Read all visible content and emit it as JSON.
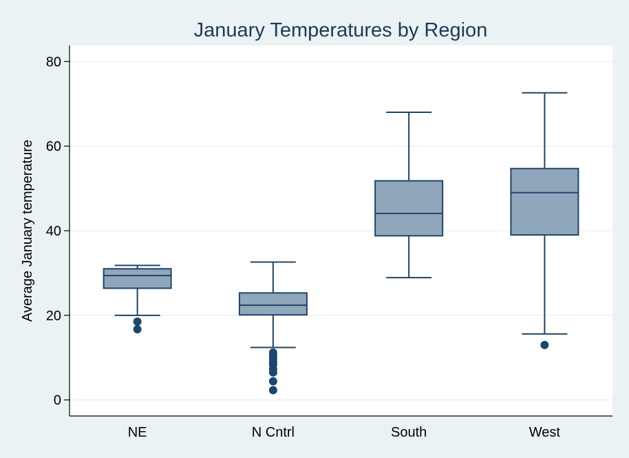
{
  "chart_data": {
    "type": "box",
    "title": "January Temperatures by Region",
    "xlabel": "",
    "ylabel": "Average January temperature",
    "ylim": [
      -3.8,
      83.8
    ],
    "yticks": [
      0,
      20,
      40,
      60,
      80
    ],
    "grid": true,
    "categories": [
      "NE",
      "N Cntrl",
      "South",
      "West"
    ],
    "boxes": [
      {
        "category": "NE",
        "whisker_low": 20.0,
        "q1": 26.4,
        "median": 29.4,
        "q3": 31.0,
        "whisker_high": 31.8,
        "outliers": [
          18.5,
          16.7
        ]
      },
      {
        "category": "N Cntrl",
        "whisker_low": 12.4,
        "q1": 20.1,
        "median": 22.4,
        "q3": 25.3,
        "whisker_high": 32.6,
        "outliers": [
          11.2,
          10.5,
          9.7,
          9.0,
          8.3,
          7.3,
          6.5,
          4.4,
          2.3
        ]
      },
      {
        "category": "South",
        "whisker_low": 28.9,
        "q1": 38.8,
        "median": 44.1,
        "q3": 51.8,
        "whisker_high": 68.0,
        "outliers": []
      },
      {
        "category": "West",
        "whisker_low": 15.6,
        "q1": 39.0,
        "median": 49.0,
        "q3": 54.7,
        "whisker_high": 72.6,
        "outliers": [
          13.0
        ]
      }
    ],
    "colors": {
      "background": "#eaf2f3",
      "plot_background": "#ffffff",
      "box_fill": "#90a6bb",
      "box_stroke": "#1f4468",
      "outlier": "#1a476f",
      "grid": "#eaf2f3",
      "axis": "#000000",
      "title": "#1e3a5a"
    }
  }
}
